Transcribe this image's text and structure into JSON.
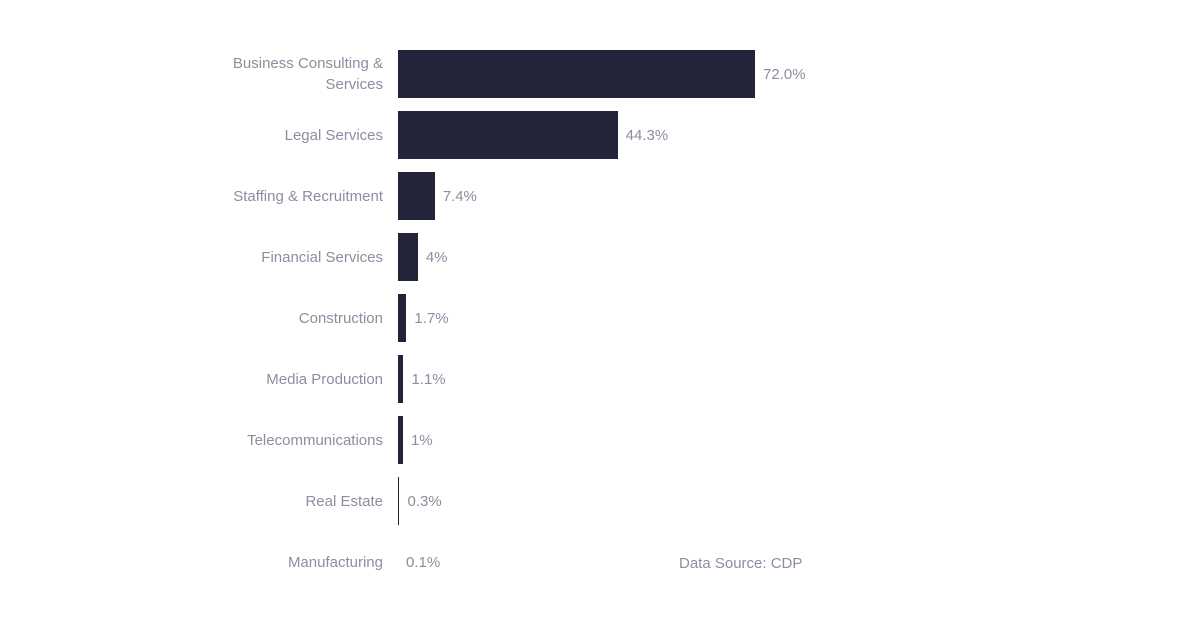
{
  "background_color": "#ffffff",
  "chart_data": {
    "type": "bar",
    "orientation": "horizontal",
    "title": "",
    "categories": [
      "Business Consulting & Services",
      "Legal Services",
      "Staffing & Recruitment",
      "Financial Services",
      "Construction",
      "Media Production",
      "Telecommunications",
      "Real Estate",
      "Manufacturing"
    ],
    "values": [
      72.0,
      44.3,
      7.4,
      4,
      1.7,
      1.1,
      1,
      0.3,
      0.1
    ],
    "value_labels": [
      "72.0%",
      "44.3%",
      "7.4%",
      "4%",
      "1.7%",
      "1.1%",
      "1%",
      "0.3%",
      "0.1%"
    ],
    "unit": "%",
    "xlim": [
      0,
      80
    ],
    "grid": false,
    "legend": false,
    "bar_color": "#232339",
    "label_color": "#8c8e9f",
    "source_note": "Data Source: CDP"
  }
}
